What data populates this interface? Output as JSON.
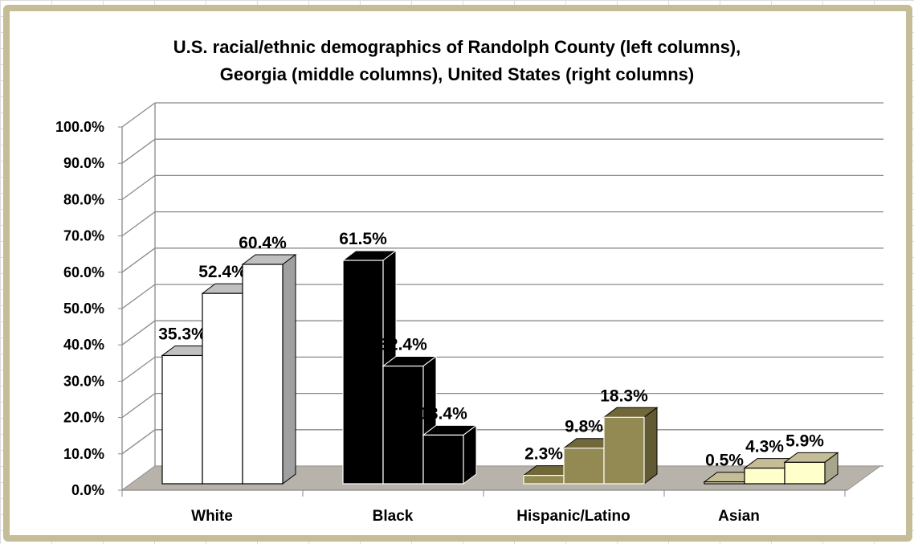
{
  "chart_data": {
    "type": "bar",
    "style": "3d-clustered-column",
    "title_lines": [
      "U.S. racial/ethnic demographics of Randolph County (left columns),",
      "Georgia (middle columns), United States (right columns)"
    ],
    "categories": [
      "White",
      "Black",
      "Hispanic/Latino",
      "Asian"
    ],
    "series": [
      {
        "values": [
          35.3,
          61.5,
          2.3,
          0.5
        ]
      },
      {
        "values": [
          52.4,
          32.4,
          9.8,
          4.3
        ]
      },
      {
        "values": [
          60.4,
          13.4,
          18.3,
          5.9
        ]
      }
    ],
    "data_labels": [
      [
        "35.3%",
        "52.4%",
        "60.4%"
      ],
      [
        "61.5%",
        "32.4%",
        "13.4%"
      ],
      [
        "2.3%",
        "9.8%",
        "18.3%"
      ],
      [
        "0.5%",
        "4.3%",
        "5.9%"
      ]
    ],
    "yticks": [
      "0.0%",
      "10.0%",
      "20.0%",
      "30.0%",
      "40.0%",
      "50.0%",
      "60.0%",
      "70.0%",
      "80.0%",
      "90.0%",
      "100.0%"
    ],
    "ylim": [
      0,
      100
    ],
    "grid": true,
    "category_colors": [
      {
        "front": "#ffffff",
        "top": "#c0c0c0",
        "side": "#a0a0a0"
      },
      {
        "front": "#000000",
        "top": "#000000",
        "side": "#000000"
      },
      {
        "front": "#938953",
        "top": "#716839",
        "side": "#625a32"
      },
      {
        "front": "#ffffcc",
        "top": "#c4bd97",
        "side": "#a8a68a"
      }
    ],
    "floor_color": "#b7b3aa",
    "frame_color": "#c4bd97"
  }
}
